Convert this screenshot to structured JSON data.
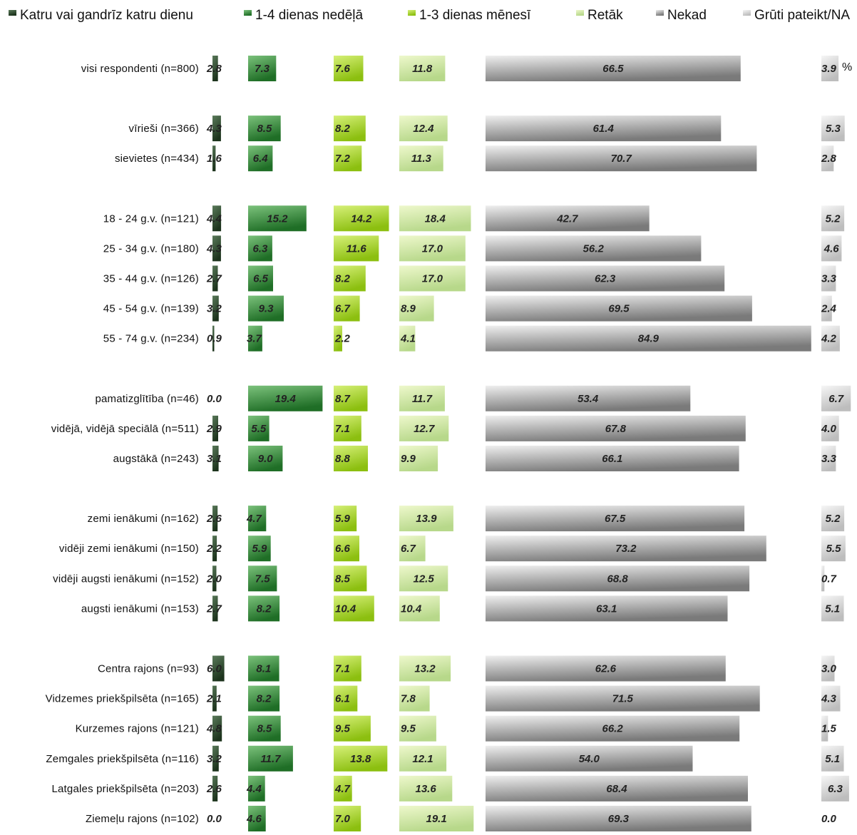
{
  "chart_data": {
    "type": "bar",
    "title": "",
    "unit": "%",
    "series": [
      {
        "name": "Katru vai gandrīz katru dienu",
        "color_light": "#5a7a5a",
        "color_dark": "#1c331c"
      },
      {
        "name": "1-4 dienas nedēļā",
        "color_light": "#7cc27c",
        "color_dark": "#1f6e26"
      },
      {
        "name": "1-3 dienas mēnesī",
        "color_light": "#d6f078",
        "color_dark": "#8cbf10"
      },
      {
        "name": "Retāk",
        "color_light": "#eef8cc",
        "color_dark": "#b7d88a"
      },
      {
        "name": "Nekad",
        "color_light": "#efefef",
        "color_dark": "#7a7a7a"
      },
      {
        "name": "Grūti pateikt/NA",
        "color_light": "#f6f6f6",
        "color_dark": "#bdbdbd"
      }
    ],
    "categories": [
      {
        "label": "visi respondenti (n=800)",
        "group": 0,
        "values": [
          2.8,
          7.3,
          7.6,
          11.8,
          66.5,
          3.9
        ]
      },
      {
        "label": "vīrieši (n=366)",
        "group": 1,
        "values": [
          4.3,
          8.5,
          8.2,
          12.4,
          61.4,
          5.3
        ]
      },
      {
        "label": "sievietes (n=434)",
        "group": 1,
        "values": [
          1.6,
          6.4,
          7.2,
          11.3,
          70.7,
          2.8
        ]
      },
      {
        "label": "18 - 24 g.v. (n=121)",
        "group": 2,
        "values": [
          4.4,
          15.2,
          14.2,
          18.4,
          42.7,
          5.2
        ]
      },
      {
        "label": "25 - 34 g.v. (n=180)",
        "group": 2,
        "values": [
          4.3,
          6.3,
          11.6,
          17.0,
          56.2,
          4.6
        ]
      },
      {
        "label": "35 - 44 g.v. (n=126)",
        "group": 2,
        "values": [
          2.7,
          6.5,
          8.2,
          17.0,
          62.3,
          3.3
        ]
      },
      {
        "label": "45 - 54 g.v. (n=139)",
        "group": 2,
        "values": [
          3.2,
          9.3,
          6.7,
          8.9,
          69.5,
          2.4
        ]
      },
      {
        "label": "55 - 74 g.v. (n=234)",
        "group": 2,
        "values": [
          0.9,
          3.7,
          2.2,
          4.1,
          84.9,
          4.2
        ]
      },
      {
        "label": "pamatizglītība (n=46)",
        "group": 3,
        "values": [
          0.0,
          19.4,
          8.7,
          11.7,
          53.4,
          6.7
        ]
      },
      {
        "label": "vidējā, vidējā speciālā (n=511)",
        "group": 3,
        "values": [
          2.9,
          5.5,
          7.1,
          12.7,
          67.8,
          4.0
        ]
      },
      {
        "label": "augstākā (n=243)",
        "group": 3,
        "values": [
          3.1,
          9.0,
          8.8,
          9.9,
          66.1,
          3.3
        ]
      },
      {
        "label": "zemi ienākumi (n=162)",
        "group": 4,
        "values": [
          2.6,
          4.7,
          5.9,
          13.9,
          67.5,
          5.2
        ]
      },
      {
        "label": "vidēji zemi ienākumi (n=150)",
        "group": 4,
        "values": [
          2.2,
          5.9,
          6.6,
          6.7,
          73.2,
          5.5
        ]
      },
      {
        "label": "vidēji augsti ienākumi (n=152)",
        "group": 4,
        "values": [
          2.0,
          7.5,
          8.5,
          12.5,
          68.8,
          0.7
        ]
      },
      {
        "label": "augsti ienākumi (n=153)",
        "group": 4,
        "values": [
          2.7,
          8.2,
          10.4,
          10.4,
          63.1,
          5.1
        ]
      },
      {
        "label": "Centra rajons (n=93)",
        "group": 5,
        "values": [
          6.0,
          8.1,
          7.1,
          13.2,
          62.6,
          3.0
        ]
      },
      {
        "label": "Vidzemes priekšpilsēta (n=165)",
        "group": 5,
        "values": [
          2.1,
          8.2,
          6.1,
          7.8,
          71.5,
          4.3
        ]
      },
      {
        "label": "Kurzemes rajons (n=121)",
        "group": 5,
        "values": [
          4.8,
          8.5,
          9.5,
          9.5,
          66.2,
          1.5
        ]
      },
      {
        "label": "Zemgales priekšpilsēta (n=116)",
        "group": 5,
        "values": [
          3.2,
          11.7,
          13.8,
          12.1,
          54.0,
          5.1
        ]
      },
      {
        "label": "Latgales priekšpilsēta (n=203)",
        "group": 5,
        "values": [
          2.6,
          4.4,
          4.7,
          13.6,
          68.4,
          6.3
        ]
      },
      {
        "label": "Ziemeļu rajons (n=102)",
        "group": 5,
        "values": [
          0.0,
          4.6,
          7.0,
          19.1,
          69.3,
          0.0
        ]
      }
    ],
    "legend_position": "top",
    "grid": false
  }
}
